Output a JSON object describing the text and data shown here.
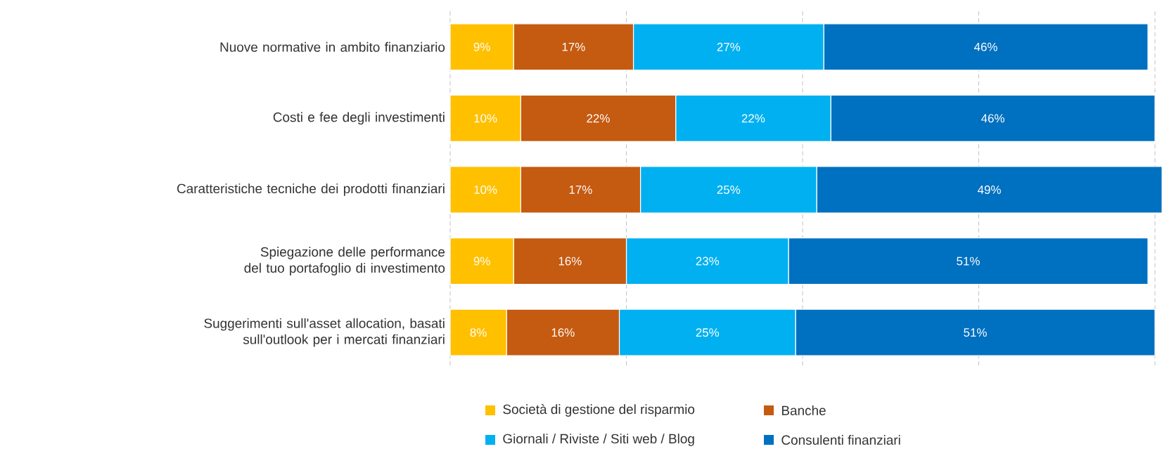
{
  "chart_data": {
    "type": "bar",
    "orientation": "horizontal",
    "stacked": true,
    "categories": [
      "Nuove normative in ambito finanziario",
      "Costi e fee degli investimenti",
      "Caratteristiche tecniche dei prodotti finanziari",
      "Spiegazione delle performance del tuo portafoglio di investimento",
      "Suggerimenti sull'asset allocation, basati sull'outlook per i mercati finanziari"
    ],
    "series": [
      {
        "name": "Società di gestione del risparmio",
        "color": "#ffc000",
        "values": [
          9,
          10,
          10,
          9,
          8
        ],
        "value_labels": [
          "9%",
          "10%",
          "10%",
          "9%",
          "8%"
        ]
      },
      {
        "name": "Banche",
        "color": "#c55a11",
        "values": [
          17,
          22,
          17,
          16,
          16
        ],
        "value_labels": [
          "17%",
          "22%",
          "17%",
          "16%",
          "16%"
        ]
      },
      {
        "name": "Giornali / Riviste / Siti web / Blog",
        "color": "#00b0f0",
        "values": [
          27,
          22,
          25,
          23,
          25
        ],
        "value_labels": [
          "27%",
          "22%",
          "25%",
          "23%",
          "25%"
        ]
      },
      {
        "name": "Consulenti finanziari",
        "color": "#0070c0",
        "values": [
          46,
          46,
          49,
          51,
          51
        ],
        "value_labels": [
          "46%",
          "46%",
          "49%",
          "51%",
          "51%"
        ]
      }
    ],
    "xlim": [
      0,
      101
    ],
    "xticks": [
      {
        "value": 0,
        "label": null
      },
      {
        "value": 25,
        "label": null
      },
      {
        "value": 50,
        "label": null
      },
      {
        "value": 75,
        "label": null
      },
      {
        "value": 100,
        "label": null
      }
    ],
    "grid": "x",
    "tick_labels": "y",
    "legend": "bottom"
  }
}
